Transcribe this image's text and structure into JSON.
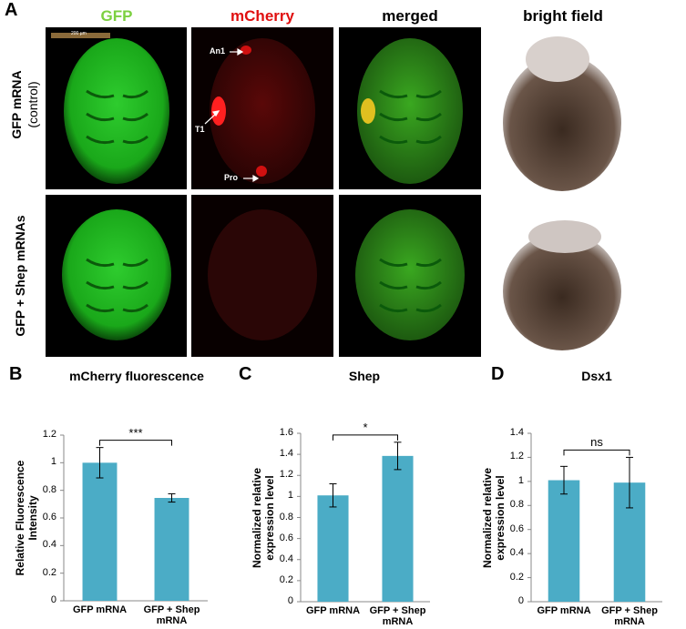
{
  "panel_a": {
    "letter": "A",
    "columns": [
      "GFP",
      "mCherry",
      "merged",
      "bright field"
    ],
    "rows": [
      {
        "label": "GFP mRNA",
        "sublabel": "(control)"
      },
      {
        "label": "GFP + Shep mRNAs"
      }
    ],
    "scale_bar": "200 µm",
    "annotations": [
      "An1",
      "T1",
      "Pro"
    ]
  },
  "chart_data": [
    {
      "type": "bar",
      "letter": "B",
      "title": "mCherry fluorescence",
      "y_label": "Relative Fluorescence Intensity",
      "categories": [
        "GFP mRNA",
        "GFP + Shep mRNA"
      ],
      "values": [
        1.0,
        0.745
      ],
      "errors": [
        0.11,
        0.03
      ],
      "color": "#4bacc6",
      "ylim": [
        0,
        1.2
      ],
      "yticks": [
        0,
        0.2,
        0.4,
        0.6,
        0.8,
        1,
        1.2
      ],
      "significance": "***"
    },
    {
      "type": "bar",
      "letter": "C",
      "title": "Shep",
      "y_label": "Normalized relative expression level",
      "categories": [
        "GFP mRNA",
        "GFP + Shep mRNA"
      ],
      "values": [
        1.01,
        1.385
      ],
      "errors": [
        0.11,
        0.13
      ],
      "color": "#4bacc6",
      "ylim": [
        0,
        1.6
      ],
      "yticks": [
        0,
        0.2,
        0.4,
        0.6,
        0.8,
        1,
        1.2,
        1.4,
        1.6
      ],
      "significance": "*"
    },
    {
      "type": "bar",
      "letter": "D",
      "title": "Dsx1",
      "y_label": "Normalized relative expression level",
      "categories": [
        "GFP mRNA",
        "GFP + Shep mRNA"
      ],
      "values": [
        1.01,
        0.99
      ],
      "errors": [
        0.115,
        0.21
      ],
      "color": "#4bacc6",
      "ylim": [
        0,
        1.4
      ],
      "yticks": [
        0,
        0.2,
        0.4,
        0.6,
        0.8,
        1,
        1.2,
        1.4
      ],
      "significance": "ns"
    }
  ]
}
